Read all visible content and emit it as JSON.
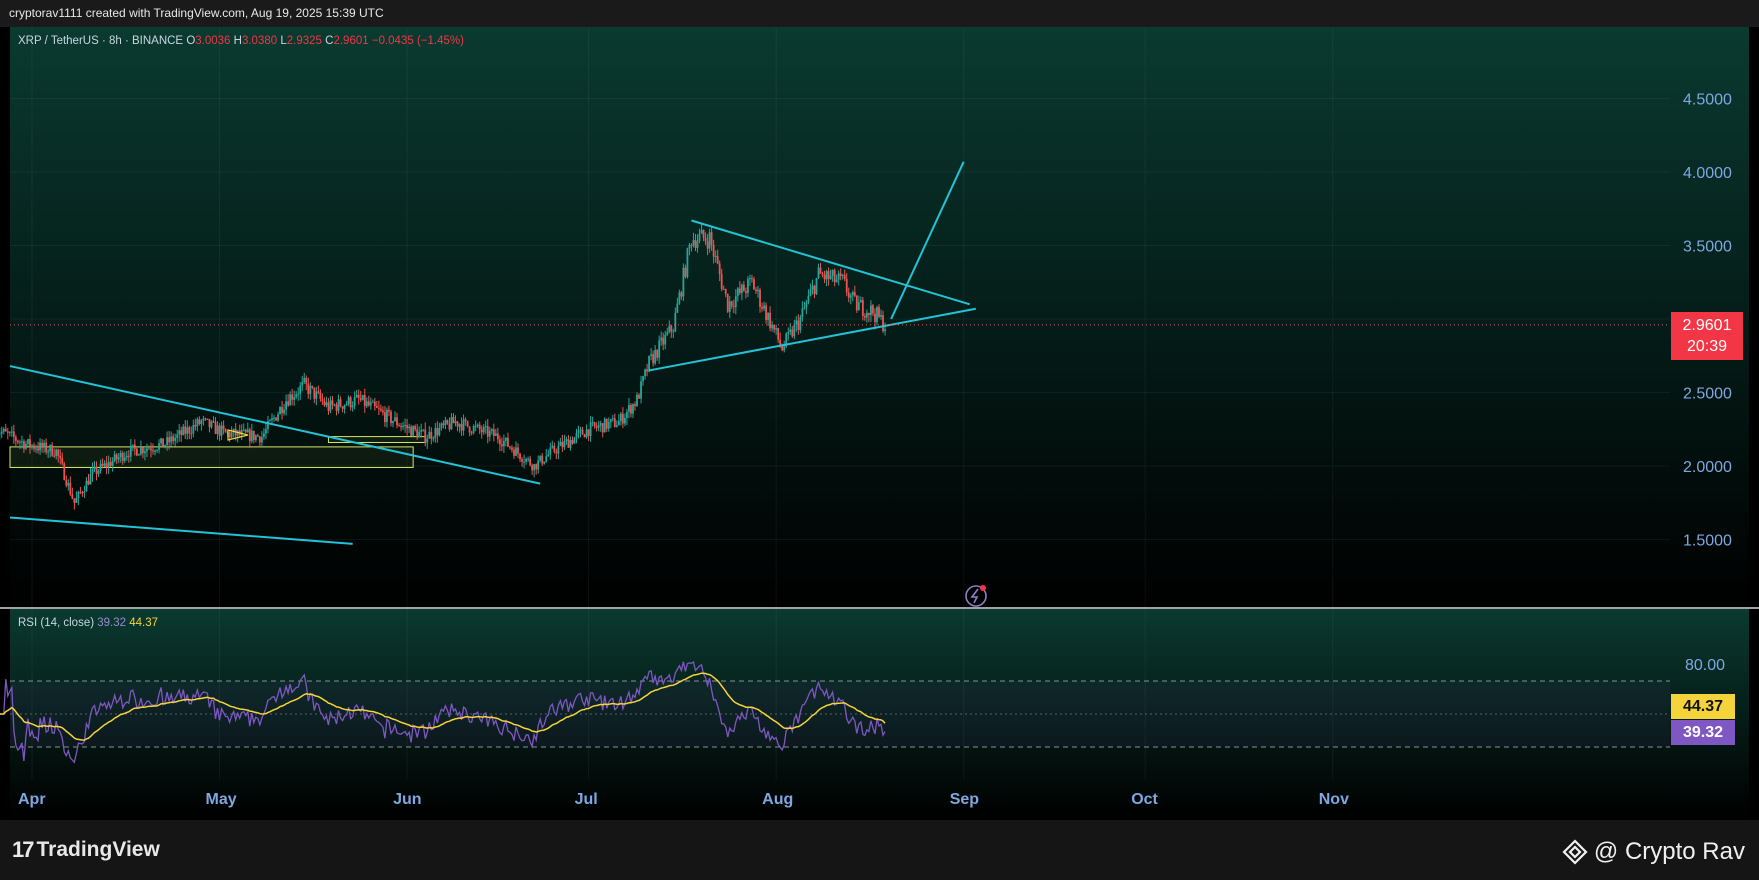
{
  "header": {
    "attribution": "cryptorav1111 created with TradingView.com, Aug 19, 2025 15:39 UTC"
  },
  "legend": {
    "symbol": "XRP / TetherUS · 8h · BINANCE",
    "open_label": "O",
    "open": "3.0036",
    "high_label": "H",
    "high": "3.0380",
    "low_label": "L",
    "low": "2.9325",
    "close_label": "C",
    "close": "2.9601",
    "change": "−0.0435 (−1.45%)"
  },
  "price_badge": {
    "price": "2.9601",
    "countdown": "20:39"
  },
  "rsi": {
    "label": "RSI (14, close)",
    "value": "39.32",
    "ma_value": "44.37",
    "axis_label": "80.00"
  },
  "footer": {
    "logo_mark": "17",
    "logo_text": "TradingView",
    "credit_text": "@ Crypto Rav"
  },
  "colors": {
    "up": "#26a69a",
    "down": "#ef5350",
    "trendline": "#22c3d6",
    "rsi_line": "#7e57c2",
    "rsi_ma": "#f5d33a",
    "axis_text": "#7fa7e0"
  },
  "chart_data": {
    "type": "candlestick",
    "timeframe": "8h",
    "x_ticks": [
      "Apr",
      "May",
      "Jun",
      "Jul",
      "Aug",
      "Sep",
      "Oct",
      "Nov"
    ],
    "y_ticks": [
      1.5,
      2.0,
      2.5,
      3.0,
      3.5,
      4.0,
      4.5
    ],
    "y_tick_labels": [
      "1.5000",
      "2.0000",
      "2.5000",
      "3.0000",
      "3.5000",
      "4.0000",
      "4.5000"
    ],
    "ylim": [
      1.0,
      4.9
    ],
    "last_price": 2.9601,
    "price_waypoints": [
      [
        "2025-03-25",
        2.25
      ],
      [
        "2025-03-30",
        2.15
      ],
      [
        "2025-04-04",
        2.1
      ],
      [
        "2025-04-07",
        1.75
      ],
      [
        "2025-04-10",
        1.95
      ],
      [
        "2025-04-16",
        2.1
      ],
      [
        "2025-04-22",
        2.15
      ],
      [
        "2025-04-28",
        2.3
      ],
      [
        "2025-05-02",
        2.22
      ],
      [
        "2025-05-08",
        2.2
      ],
      [
        "2025-05-12",
        2.45
      ],
      [
        "2025-05-15",
        2.55
      ],
      [
        "2025-05-19",
        2.4
      ],
      [
        "2025-05-24",
        2.45
      ],
      [
        "2025-05-31",
        2.28
      ],
      [
        "2025-06-04",
        2.2
      ],
      [
        "2025-06-09",
        2.3
      ],
      [
        "2025-06-16",
        2.2
      ],
      [
        "2025-06-22",
        2.0
      ],
      [
        "2025-06-25",
        2.1
      ],
      [
        "2025-07-01",
        2.25
      ],
      [
        "2025-07-06",
        2.3
      ],
      [
        "2025-07-09",
        2.45
      ],
      [
        "2025-07-11",
        2.7
      ],
      [
        "2025-07-15",
        2.95
      ],
      [
        "2025-07-18",
        3.55
      ],
      [
        "2025-07-21",
        3.55
      ],
      [
        "2025-07-24",
        3.1
      ],
      [
        "2025-07-28",
        3.25
      ],
      [
        "2025-08-02",
        2.8
      ],
      [
        "2025-08-05",
        3.0
      ],
      [
        "2025-08-08",
        3.3
      ],
      [
        "2025-08-12",
        3.25
      ],
      [
        "2025-08-14",
        3.1
      ],
      [
        "2025-08-17",
        3.05
      ],
      [
        "2025-08-19",
        2.96
      ]
    ],
    "trendlines": [
      {
        "from": [
          "2025-03-25",
          2.68
        ],
        "to": [
          "2025-06-23",
          1.88
        ]
      },
      {
        "from": [
          "2025-03-25",
          1.65
        ],
        "to": [
          "2025-05-23",
          1.47
        ]
      },
      {
        "from": [
          "2025-07-11",
          2.65
        ],
        "to": [
          "2025-09-03",
          3.07
        ]
      },
      {
        "from": [
          "2025-07-18",
          3.67
        ],
        "to": [
          "2025-09-02",
          3.1
        ]
      },
      {
        "from": [
          "2025-08-20",
          3.0
        ],
        "to": [
          "2025-09-01",
          4.07
        ]
      }
    ],
    "zones": [
      {
        "from": "2025-03-25",
        "to": "2025-06-02",
        "top": 2.13,
        "bottom": 1.99
      },
      {
        "from": "2025-05-19",
        "to": "2025-06-04",
        "top": 2.2,
        "bottom": 2.16
      }
    ],
    "rsi": {
      "period": 14,
      "last": 39.32,
      "ma_last": 44.37,
      "upper_band": 70,
      "middle_band": 50,
      "lower_band": 30
    }
  }
}
